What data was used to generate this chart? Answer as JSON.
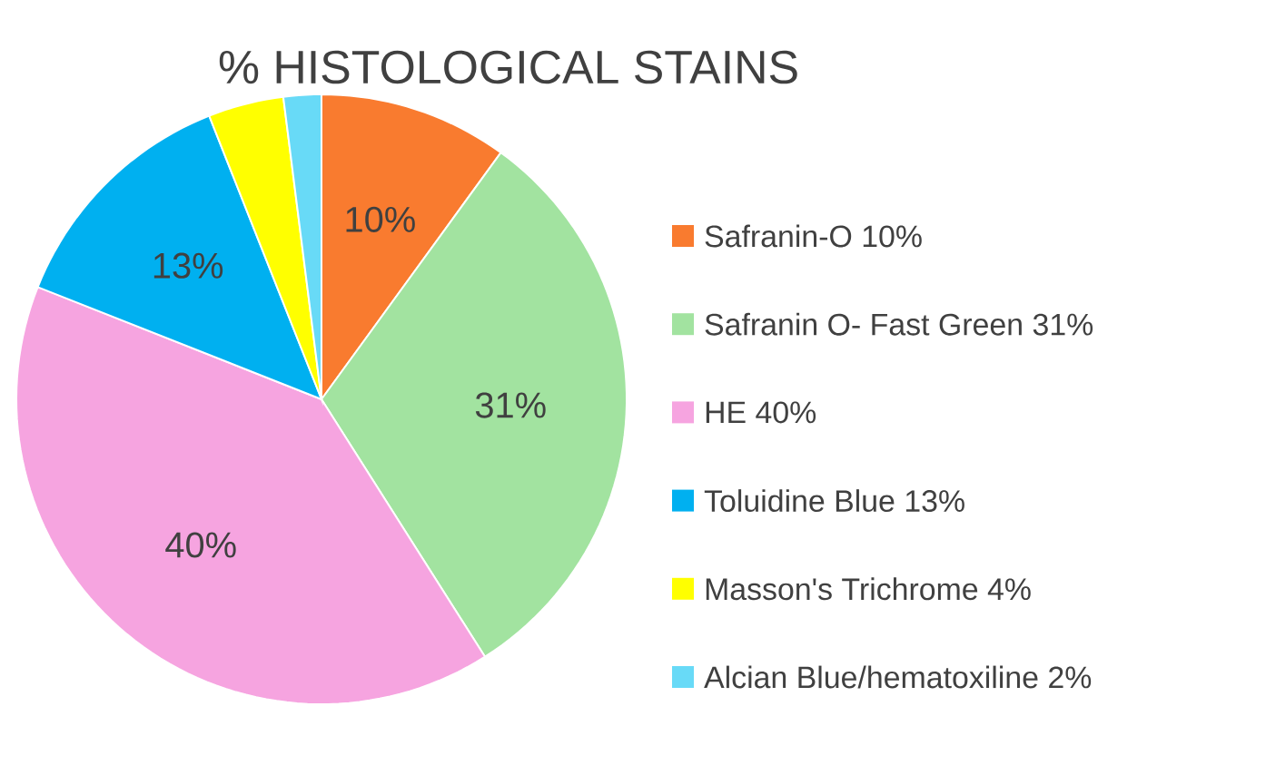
{
  "chart_data": {
    "type": "pie",
    "title": "% HISTOLOGICAL STAINS",
    "categories": [
      "Safranin-O 10%",
      "Safranin O- Fast Green 31%",
      "HE 40%",
      "Toluidine Blue 13%",
      "Masson's Trichrome 4%",
      "Alcian Blue/hematoxiline 2%"
    ],
    "values": [
      10,
      31,
      40,
      13,
      4,
      2
    ],
    "colors": [
      "#f97b2f",
      "#a2e3a0",
      "#f6a4e0",
      "#00b0f0",
      "#ffff00",
      "#68daf7"
    ],
    "value_labels": [
      "10%",
      "31%",
      "40%",
      "13%",
      null,
      null
    ],
    "legend": "right"
  }
}
